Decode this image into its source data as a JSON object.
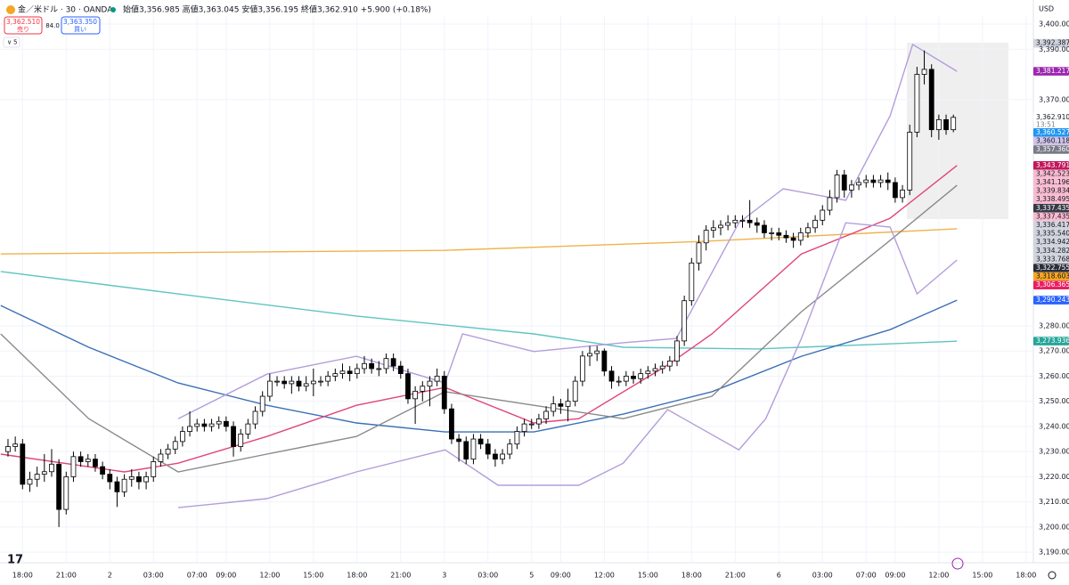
{
  "header": {
    "symbol": "金／米ドル · 30 · OANDA",
    "ohlc": "始値3,356.985 高値3,363.045 安値3,356.195 終値3,362.910 +5.900 (+0.18%)",
    "sell_price": "3,362.510",
    "sell": "売り",
    "spread": "84.0",
    "buy_price": "3,363.350",
    "buy": "買い",
    "indicators": "5",
    "currency": "USD"
  },
  "chart_data": {
    "type": "candlestick",
    "x": [
      0,
      1,
      2,
      3,
      4,
      5,
      6,
      7,
      8,
      9,
      10,
      11,
      12,
      13,
      14,
      15,
      16,
      17,
      18,
      19,
      20,
      21,
      22,
      23,
      24,
      25,
      26,
      27,
      28,
      29,
      30,
      31,
      32,
      33,
      34,
      35,
      36,
      37,
      38,
      39,
      40,
      41,
      42,
      43,
      44,
      45,
      46,
      47,
      48,
      49,
      50,
      51,
      52,
      53,
      54,
      55,
      56,
      57,
      58,
      59,
      60,
      61,
      62,
      63,
      64,
      65,
      66,
      67,
      68,
      69,
      70,
      71,
      72,
      73,
      74,
      75,
      76,
      77,
      78,
      79,
      80,
      81,
      82,
      83,
      84,
      85,
      86,
      87,
      88,
      89,
      90,
      91,
      92,
      93,
      94,
      95,
      96,
      97,
      98,
      99,
      100,
      101,
      102,
      103,
      104,
      105,
      106,
      107,
      108,
      109,
      110,
      111,
      112,
      113,
      114,
      115,
      116,
      117,
      118,
      119,
      120,
      121,
      122,
      123,
      124,
      125,
      126,
      127,
      128,
      129,
      130
    ],
    "open": [
      3230,
      3232,
      3233,
      3217,
      3219,
      3221,
      3222,
      3225,
      3207,
      3220,
      3228,
      3226,
      3227,
      3224,
      3221,
      3218,
      3214,
      3219,
      3220,
      3218,
      3220,
      3226,
      3229,
      3231,
      3234,
      3238,
      3240,
      3241,
      3240,
      3241,
      3242,
      3240,
      3232,
      3237,
      3241,
      3246,
      3252,
      3258,
      3258,
      3257,
      3258,
      3256,
      3257,
      3258,
      3258,
      3260,
      3261,
      3262,
      3261,
      3263,
      3265,
      3263,
      3263,
      3267,
      3264,
      3261,
      3251,
      3254,
      3256,
      3258,
      3260,
      3247,
      3235,
      3234,
      3227,
      3235,
      3233,
      3229,
      3227,
      3229,
      3233,
      3238,
      3241,
      3241,
      3243,
      3246,
      3249,
      3248,
      3250,
      3258,
      3268,
      3269,
      3270,
      3262,
      3258,
      3258,
      3260,
      3259,
      3261,
      3262,
      3263,
      3264,
      3266,
      3274,
      3290,
      3305,
      3313,
      3318,
      3319,
      3320,
      3321,
      3322,
      3322,
      3321,
      3320,
      3317,
      3317,
      3316,
      3315,
      3314,
      3317,
      3319,
      3322,
      3326,
      3331,
      3340,
      3334,
      3336,
      3337,
      3338,
      3337,
      3338,
      3337,
      3331,
      3334,
      3357,
      3380,
      3382,
      3358,
      3362,
      3358
    ],
    "high": [
      3235,
      3236,
      3235,
      3222,
      3224,
      3229,
      3231,
      3227,
      3222,
      3230,
      3230,
      3229,
      3229,
      3226,
      3223,
      3220,
      3221,
      3223,
      3222,
      3222,
      3228,
      3231,
      3233,
      3236,
      3240,
      3246,
      3243,
      3243,
      3243,
      3244,
      3244,
      3242,
      3239,
      3243,
      3248,
      3254,
      3261,
      3260,
      3260,
      3260,
      3260,
      3260,
      3263,
      3260,
      3262,
      3263,
      3265,
      3264,
      3265,
      3268,
      3267,
      3266,
      3269,
      3269,
      3266,
      3263,
      3256,
      3258,
      3260,
      3263,
      3262,
      3249,
      3237,
      3236,
      3237,
      3237,
      3235,
      3231,
      3231,
      3235,
      3240,
      3243,
      3243,
      3245,
      3248,
      3252,
      3251,
      3255,
      3260,
      3270,
      3272,
      3272,
      3271,
      3264,
      3260,
      3262,
      3262,
      3263,
      3264,
      3265,
      3266,
      3268,
      3276,
      3292,
      3307,
      3316,
      3320,
      3322,
      3322,
      3324,
      3324,
      3324,
      3330,
      3323,
      3322,
      3319,
      3319,
      3318,
      3317,
      3319,
      3321,
      3324,
      3328,
      3334,
      3342,
      3342,
      3338,
      3339,
      3340,
      3340,
      3340,
      3341,
      3339,
      3336,
      3360,
      3383,
      3389.5,
      3384,
      3364,
      3364,
      3364
    ],
    "low": [
      3228,
      3230,
      3215,
      3214,
      3216,
      3218,
      3220,
      3200,
      3205,
      3218,
      3224,
      3224,
      3222,
      3219,
      3215,
      3208,
      3212,
      3216,
      3215,
      3215,
      3218,
      3224,
      3227,
      3229,
      3232,
      3236,
      3238,
      3238,
      3238,
      3239,
      3238,
      3228,
      3230,
      3235,
      3239,
      3244,
      3250,
      3256,
      3255,
      3253,
      3254,
      3254,
      3252,
      3256,
      3256,
      3258,
      3259,
      3258,
      3259,
      3261,
      3261,
      3260,
      3261,
      3262,
      3259,
      3249,
      3241,
      3250,
      3248,
      3256,
      3245,
      3233,
      3226,
      3225,
      3225,
      3231,
      3227,
      3224,
      3225,
      3227,
      3231,
      3236,
      3239,
      3239,
      3241,
      3244,
      3245,
      3242,
      3248,
      3256,
      3264,
      3266,
      3260,
      3255,
      3256,
      3256,
      3257,
      3257,
      3259,
      3260,
      3261,
      3262,
      3264,
      3272,
      3288,
      3302,
      3310,
      3315,
      3316,
      3318,
      3319,
      3319,
      3319,
      3317,
      3315,
      3314,
      3314,
      3313,
      3311,
      3312,
      3315,
      3317,
      3320,
      3324,
      3329,
      3331,
      3331,
      3334,
      3335,
      3335,
      3335,
      3334,
      3329,
      3329,
      3332,
      3355,
      3376,
      3355,
      3354,
      3356,
      3357
    ],
    "close": [
      3232,
      3233,
      3217,
      3219,
      3221,
      3222,
      3225,
      3207,
      3220,
      3228,
      3226,
      3227,
      3224,
      3221,
      3218,
      3214,
      3219,
      3220,
      3218,
      3220,
      3226,
      3229,
      3231,
      3234,
      3238,
      3240,
      3241,
      3240,
      3241,
      3242,
      3240,
      3232,
      3237,
      3241,
      3246,
      3252,
      3258,
      3258,
      3257,
      3258,
      3256,
      3257,
      3258,
      3258,
      3260,
      3261,
      3262,
      3261,
      3263,
      3265,
      3263,
      3263,
      3267,
      3264,
      3261,
      3251,
      3254,
      3256,
      3258,
      3260,
      3247,
      3235,
      3234,
      3227,
      3235,
      3233,
      3229,
      3227,
      3229,
      3233,
      3238,
      3241,
      3241,
      3243,
      3246,
      3249,
      3248,
      3250,
      3258,
      3268,
      3269,
      3270,
      3262,
      3258,
      3258,
      3260,
      3259,
      3261,
      3262,
      3263,
      3264,
      3266,
      3274,
      3290,
      3305,
      3313,
      3318,
      3319,
      3320,
      3321,
      3322,
      3322,
      3321,
      3320,
      3317,
      3317,
      3316,
      3315,
      3314,
      3317,
      3319,
      3322,
      3326,
      3331,
      3340,
      3334,
      3336,
      3337,
      3338,
      3337,
      3338,
      3337,
      3331,
      3334,
      3357,
      3380,
      3382,
      3358,
      3362,
      3358,
      3362.91
    ],
    "up_color": "#ffffff",
    "down_color": "#000000",
    "edge_color": "#000000",
    "series": [
      {
        "color": "#f0b24a",
        "x": [
          -1,
          60,
          95,
          130.5
        ],
        "values": [
          3308.6,
          3310,
          3313.5,
          3318.6
        ]
      },
      {
        "color": "#5fc4c0",
        "x": [
          -1,
          23.4,
          47.9,
          72.3,
          84.6,
          103,
          130.5
        ],
        "values": [
          3301.6,
          3292.7,
          3283.9,
          3276.8,
          3271.5,
          3270.8,
          3273.9
        ]
      },
      {
        "color": "#3b6fb6",
        "x": [
          -1,
          11.1,
          23.4,
          35.6,
          47.9,
          60.1,
          72.3,
          84.6,
          96.8,
          109.1,
          121.3,
          130.5
        ],
        "values": [
          3288.1,
          3271.5,
          3257.3,
          3248.4,
          3241.4,
          3237.8,
          3237.8,
          3244.9,
          3253.8,
          3267.9,
          3278.5,
          3290.2
        ]
      },
      {
        "color": "#e0457a",
        "x": [
          -1,
          16,
          23.4,
          35.6,
          47.9,
          60.1,
          72.3,
          78.5,
          90.7,
          96.8,
          109.1,
          121.3,
          130.5
        ],
        "values": [
          3229,
          3221.9,
          3225.4,
          3236,
          3248.4,
          3255.5,
          3241.4,
          3243.1,
          3264.4,
          3276.8,
          3308.6,
          3322.8,
          3343.8
        ]
      },
      {
        "color": "#8a8a8a",
        "x": [
          -1,
          11.1,
          23.4,
          35.6,
          47.9,
          60.1,
          72.3,
          84.6,
          96.8,
          109.1,
          121.3,
          130.5
        ],
        "values": [
          3276.8,
          3243.1,
          3221.9,
          3229,
          3236,
          3253.8,
          3248.4,
          3243.1,
          3252,
          3285.6,
          3314,
          3335.9
        ]
      },
      {
        "color": "#b39ddb",
        "x": [
          23.4,
          35.6,
          47.9,
          60.1,
          62.5,
          72.3,
          84.6,
          91.9,
          100.5,
          106.6,
          115.2,
          121.3,
          124.4,
          130.5
        ],
        "values": [
          3243.1,
          3260.8,
          3267.9,
          3257.3,
          3276.8,
          3269.8,
          3273.3,
          3275,
          3321,
          3334.5,
          3329.9,
          3363.5,
          3391.9,
          3381.2
        ]
      },
      {
        "color": "#b39ddb",
        "x": [
          23.4,
          35.6,
          47.9,
          60.1,
          67.4,
          78.5,
          84.6,
          90.7,
          100.5,
          104.2,
          109.1,
          115.2,
          121.3,
          125,
          130.5
        ],
        "values": [
          3207.7,
          3211.3,
          3221.9,
          3230.7,
          3216.6,
          3216.6,
          3225.4,
          3246.7,
          3230.7,
          3243.1,
          3275,
          3321,
          3319.3,
          3292.7,
          3306.2
        ]
      }
    ],
    "xlim": [
      -1.1,
      141
    ],
    "ylim": [
      3185.8,
      3403.2
    ],
    "xticks": [
      {
        "value": 2,
        "label": "18:00"
      },
      {
        "value": 8,
        "label": "21:00"
      },
      {
        "value": 14,
        "label": "2"
      },
      {
        "value": 20,
        "label": "03:00"
      },
      {
        "value": 26,
        "label": "07:00"
      },
      {
        "value": 30,
        "label": "09:00"
      },
      {
        "value": 36,
        "label": "12:00"
      },
      {
        "value": 42,
        "label": "15:00"
      },
      {
        "value": 48,
        "label": "18:00"
      },
      {
        "value": 54,
        "label": "21:00"
      },
      {
        "value": 60,
        "label": "3"
      },
      {
        "value": 66,
        "label": "03:00"
      },
      {
        "value": 72,
        "label": "5"
      },
      {
        "value": 76,
        "label": "09:00"
      },
      {
        "value": 82,
        "label": "12:00"
      },
      {
        "value": 88,
        "label": "15:00"
      },
      {
        "value": 94,
        "label": "18:00"
      },
      {
        "value": 100,
        "label": "21:00"
      },
      {
        "value": 106,
        "label": "6"
      },
      {
        "value": 112,
        "label": "03:00"
      },
      {
        "value": 118,
        "label": "07:00"
      },
      {
        "value": 122,
        "label": "09:00"
      },
      {
        "value": 128,
        "label": "12:00"
      },
      {
        "value": 134,
        "label": "15:00"
      },
      {
        "value": 140,
        "label": "18:00"
      }
    ],
    "yticks": [
      {
        "value": 3400,
        "label": "3,400.000"
      },
      {
        "value": 3390,
        "label": "3,390.000"
      },
      {
        "value": 3370,
        "label": "3,370.000"
      },
      {
        "value": 3280,
        "label": "3,280.000"
      },
      {
        "value": 3270,
        "label": "3,270.000"
      },
      {
        "value": 3260,
        "label": "3,260.000"
      },
      {
        "value": 3250,
        "label": "3,250.000"
      },
      {
        "value": 3240,
        "label": "3,240.000"
      },
      {
        "value": 3230,
        "label": "3,230.000"
      },
      {
        "value": 3220,
        "label": "3,220.000"
      },
      {
        "value": 3210,
        "label": "3,210.000"
      },
      {
        "value": 3200,
        "label": "3,200.000"
      },
      {
        "value": 3190,
        "label": "3,190.000"
      }
    ],
    "grid": true,
    "countdown": "13:51",
    "price_labels": [
      {
        "value": 3392.387,
        "label": "3,392.387",
        "color": "#d1d4dc"
      },
      {
        "value": 3381.217,
        "label": "3,381.217",
        "color": "#9c27b0"
      },
      {
        "value": 3362.91,
        "label": "3,362.910",
        "color": "#ffffff"
      },
      {
        "value": 3360.527,
        "label": "3,360.527",
        "color": "#2196f3"
      },
      {
        "value": 3360.118,
        "label": "3,360.118",
        "color": "#d1c4e9"
      },
      {
        "value": 3357.36,
        "label": "3,357.360",
        "color": "#787b86"
      },
      {
        "value": 3343.791,
        "label": "3,343.791",
        "color": "#c2185b"
      },
      {
        "value": 3342.523,
        "label": "3,342.523",
        "color": "#f8bbd0"
      },
      {
        "value": 3341.196,
        "label": "3,341.196",
        "color": "#f8bbd0"
      },
      {
        "value": 3339.834,
        "label": "3,339.834",
        "color": "#f8bbd0"
      },
      {
        "value": 3338.495,
        "label": "3,338.495",
        "color": "#f8bbd0"
      },
      {
        "value": 3337.435,
        "label": "3,337.435",
        "color": "#363a45"
      },
      {
        "value": 3337.435,
        "label": "3,337.435",
        "color": "#f8bbd0"
      },
      {
        "value": 3336.417,
        "label": "3,336.417",
        "color": "#d1d4dc"
      },
      {
        "value": 3335.54,
        "label": "3,335.540",
        "color": "#d1d4dc"
      },
      {
        "value": 3334.942,
        "label": "3,334.942",
        "color": "#d1d4dc"
      },
      {
        "value": 3334.282,
        "label": "3,334.282",
        "color": "#d1d4dc"
      },
      {
        "value": 3333.768,
        "label": "3,333.768",
        "color": "#d1d4dc"
      },
      {
        "value": 3322.755,
        "label": "3,322.755",
        "color": "#2a2e39"
      },
      {
        "value": 3318.603,
        "label": "3,318.603",
        "color": "#f5a623"
      },
      {
        "value": 3306.365,
        "label": "3,306.365",
        "color": "#e91e63"
      },
      {
        "value": 3290.243,
        "label": "3,290.243",
        "color": "#2962ff"
      },
      {
        "value": 3273.936,
        "label": "3,273.936",
        "color": "#26a69a"
      }
    ]
  }
}
